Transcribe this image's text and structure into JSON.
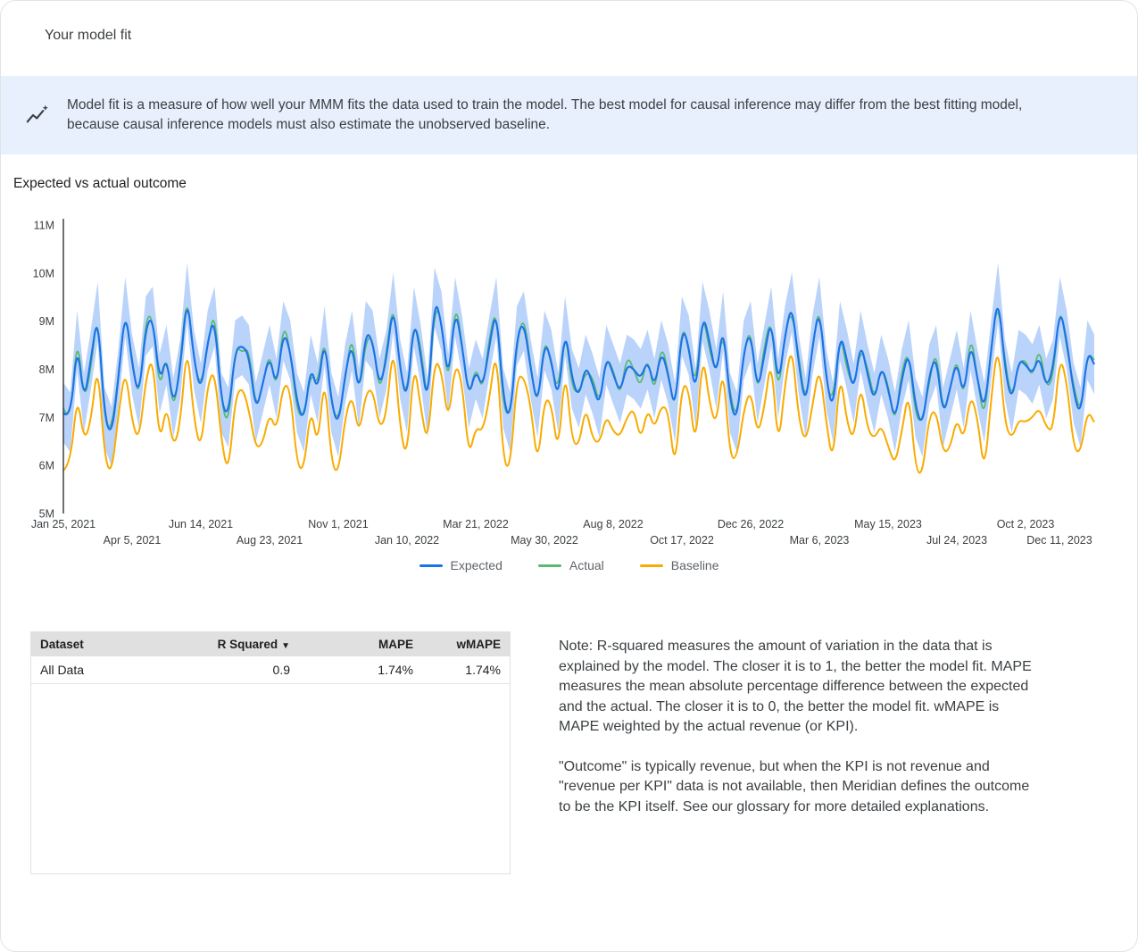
{
  "page": {
    "title": "Your model fit"
  },
  "banner": {
    "icon": "insights-icon",
    "text": "Model fit is a measure of how well your MMM fits the data used to train the model. The best model for causal inference may differ from the best fitting model, because causal inference models must also estimate the unobserved baseline."
  },
  "chart_section": {
    "title": "Expected vs actual outcome"
  },
  "chart_data": {
    "type": "line",
    "title": "Expected vs actual outcome",
    "xlabel": "",
    "ylabel": "",
    "unit": "M",
    "ylim": [
      5,
      11
    ],
    "grid": false,
    "legend_position": "bottom",
    "band_color": "#aecbfa",
    "ci_halfwidth": 0.62,
    "y_ticks": [
      "5M",
      "6M",
      "7M",
      "8M",
      "9M",
      "10M",
      "11M"
    ],
    "x_tick_labels": [
      "Jan 25, 2021",
      "Apr 5, 2021",
      "Jun 14, 2021",
      "Aug 23, 2021",
      "Nov 1, 2021",
      "Jan 10, 2022",
      "Mar 21, 2022",
      "May 30, 2022",
      "Aug 8, 2022",
      "Oct 17, 2022",
      "Dec 26, 2022",
      "Mar 6, 2023",
      "May 15, 2023",
      "Jul 24, 2023",
      "Oct 2, 2023",
      "Dec 11, 2023"
    ],
    "x_tick_step_weeks": 10,
    "series": [
      {
        "name": "Expected",
        "color": "#1a73e8",
        "values": [
          7.1,
          6.9,
          8.6,
          7.3,
          8.2,
          9.2,
          7.0,
          6.6,
          7.8,
          9.3,
          8.1,
          7.4,
          8.9,
          9.1,
          7.7,
          8.3,
          7.2,
          8.0,
          9.6,
          8.2,
          7.5,
          8.6,
          9.1,
          7.3,
          7.0,
          8.4,
          8.5,
          8.3,
          7.1,
          7.7,
          8.3,
          7.6,
          8.8,
          8.4,
          7.3,
          6.9,
          8.1,
          7.5,
          8.7,
          7.3,
          6.8,
          7.9,
          8.6,
          7.4,
          8.8,
          8.6,
          7.6,
          8.2,
          9.4,
          8.0,
          7.3,
          9.1,
          8.3,
          7.2,
          9.5,
          9.0,
          7.7,
          9.3,
          8.5,
          7.4,
          8.0,
          7.6,
          8.5,
          9.3,
          7.4,
          6.9,
          8.7,
          9.0,
          8.0,
          7.2,
          8.6,
          8.2,
          7.3,
          8.9,
          7.8,
          7.4,
          8.1,
          7.7,
          7.2,
          8.3,
          7.9,
          7.5,
          8.1,
          8.0,
          7.8,
          8.2,
          7.6,
          8.4,
          7.9,
          7.1,
          8.9,
          8.5,
          7.4,
          9.2,
          8.6,
          7.8,
          9.0,
          7.3,
          6.9,
          8.4,
          8.8,
          7.5,
          8.3,
          9.1,
          7.6,
          8.7,
          9.4,
          8.1,
          7.2,
          8.5,
          9.3,
          7.8,
          7.1,
          8.8,
          8.2,
          7.5,
          8.6,
          7.9,
          7.3,
          8.1,
          7.6,
          6.9,
          7.8,
          8.4,
          7.2,
          6.8,
          7.9,
          8.3,
          7.0,
          7.6,
          8.2,
          7.4,
          8.6,
          7.8,
          7.1,
          8.4,
          9.6,
          8.0,
          7.3,
          8.2,
          8.1,
          7.9,
          8.3,
          7.6,
          8.0,
          9.3,
          8.6,
          7.5,
          7.0,
          8.4,
          8.1
        ]
      },
      {
        "name": "Actual",
        "color": "#5bb974",
        "values": [
          7.2,
          6.8,
          8.8,
          7.3,
          8.0,
          9.3,
          6.85,
          6.75,
          7.85,
          9.25,
          8.2,
          7.3,
          9.1,
          9.1,
          7.5,
          8.4,
          7.05,
          8.15,
          9.65,
          8.15,
          7.6,
          8.5,
          9.3,
          7.3,
          6.8,
          8.5,
          8.35,
          8.45,
          7.15,
          7.65,
          8.4,
          7.5,
          9.0,
          8.4,
          7.1,
          7.0,
          7.95,
          7.65,
          8.75,
          7.25,
          6.9,
          7.8,
          8.8,
          7.4,
          8.6,
          8.7,
          7.45,
          8.35,
          9.45,
          7.95,
          7.4,
          9.0,
          8.5,
          7.2,
          9.3,
          9.1,
          7.55,
          9.45,
          8.55,
          7.35,
          8.1,
          7.5,
          8.7,
          9.3,
          7.2,
          7.0,
          8.55,
          9.15,
          8.05,
          7.15,
          8.7,
          8.1,
          7.5,
          8.9,
          7.6,
          7.5,
          7.95,
          7.85,
          7.25,
          8.25,
          8.0,
          7.4,
          8.3,
          8.0,
          7.6,
          8.3,
          7.45,
          8.55,
          7.95,
          7.05,
          9.0,
          8.4,
          7.6,
          9.2,
          8.4,
          7.9,
          8.85,
          7.45,
          6.95,
          8.35,
          8.9,
          7.4,
          8.5,
          9.1,
          7.4,
          8.8,
          9.25,
          8.25,
          7.25,
          8.45,
          9.4,
          7.7,
          7.3,
          8.8,
          8.0,
          7.6,
          8.45,
          8.05,
          7.35,
          8.05,
          7.7,
          6.8,
          8.0,
          8.4,
          7.0,
          6.9,
          7.75,
          8.45,
          7.05,
          7.55,
          8.3,
          7.3,
          8.8,
          7.8,
          6.9,
          8.5,
          9.45,
          8.15,
          7.35,
          8.15,
          8.2,
          7.8,
          8.5,
          7.6,
          7.8,
          9.4,
          8.45,
          7.65,
          7.05,
          8.35,
          8.2
        ]
      },
      {
        "name": "Baseline",
        "color": "#f9ab00",
        "values": [
          5.9,
          6.0,
          7.5,
          6.5,
          6.9,
          8.2,
          6.15,
          5.8,
          7.05,
          8.05,
          6.9,
          6.5,
          7.8,
          8.3,
          6.4,
          7.3,
          6.35,
          6.85,
          8.6,
          6.95,
          6.3,
          7.7,
          8.0,
          6.5,
          5.8,
          7.4,
          7.65,
          7.15,
          6.35,
          6.45,
          7.1,
          6.7,
          7.7,
          7.6,
          6.0,
          5.9,
          7.25,
          6.35,
          7.95,
          6.05,
          5.8,
          7.0,
          7.5,
          6.6,
          7.5,
          7.6,
          6.75,
          7.05,
          8.6,
          6.75,
          6.1,
          8.2,
          7.2,
          6.4,
          8.2,
          8.0,
          6.85,
          8.15,
          7.75,
          6.15,
          6.8,
          6.7,
          7.4,
          8.5,
          6.1,
          5.9,
          7.85,
          7.85,
          7.25,
          5.95,
          7.4,
          7.3,
          6.2,
          8.1,
          6.5,
          6.4,
          7.25,
          6.55,
          6.45,
          7.05,
          6.7,
          6.6,
          7.0,
          7.2,
          6.5,
          7.2,
          6.75,
          7.25,
          7.15,
          5.85,
          7.7,
          7.6,
          6.3,
          8.4,
          7.3,
          6.8,
          8.15,
          6.15,
          6.15,
          7.15,
          7.6,
          6.6,
          7.2,
          8.3,
          6.3,
          7.7,
          8.55,
          6.95,
          6.45,
          7.25,
          8.1,
          6.9,
          6.0,
          8.0,
          6.9,
          6.5,
          7.75,
          6.75,
          6.55,
          6.85,
          6.4,
          6.0,
          6.7,
          7.6,
          5.9,
          5.8,
          7.05,
          7.15,
          6.25,
          6.35,
          7.0,
          6.5,
          7.5,
          7.0,
          5.8,
          7.4,
          8.6,
          6.85,
          6.55,
          6.95,
          6.9,
          7.0,
          7.2,
          6.8,
          6.7,
          8.3,
          7.75,
          6.35,
          6.25,
          7.15,
          6.9
        ]
      }
    ]
  },
  "table": {
    "columns": [
      "Dataset",
      "R Squared",
      "MAPE",
      "wMAPE"
    ],
    "sort_icon": "▼",
    "rows": [
      [
        "All Data",
        "0.9",
        "1.74%",
        "1.74%"
      ]
    ]
  },
  "note": {
    "paragraph1": "Note: R-squared measures the amount of variation in the data that is explained by the model. The closer it is to 1, the better the model fit. MAPE measures the mean absolute percentage difference between the expected and the actual. The closer it is to 0, the better the model fit. wMAPE is MAPE weighted by the actual revenue (or KPI).",
    "paragraph2": "\"Outcome\" is typically revenue, but when the KPI is not revenue and \"revenue per KPI\" data is not available, then Meridian defines the outcome to be the KPI itself. See our glossary for more detailed explanations."
  }
}
